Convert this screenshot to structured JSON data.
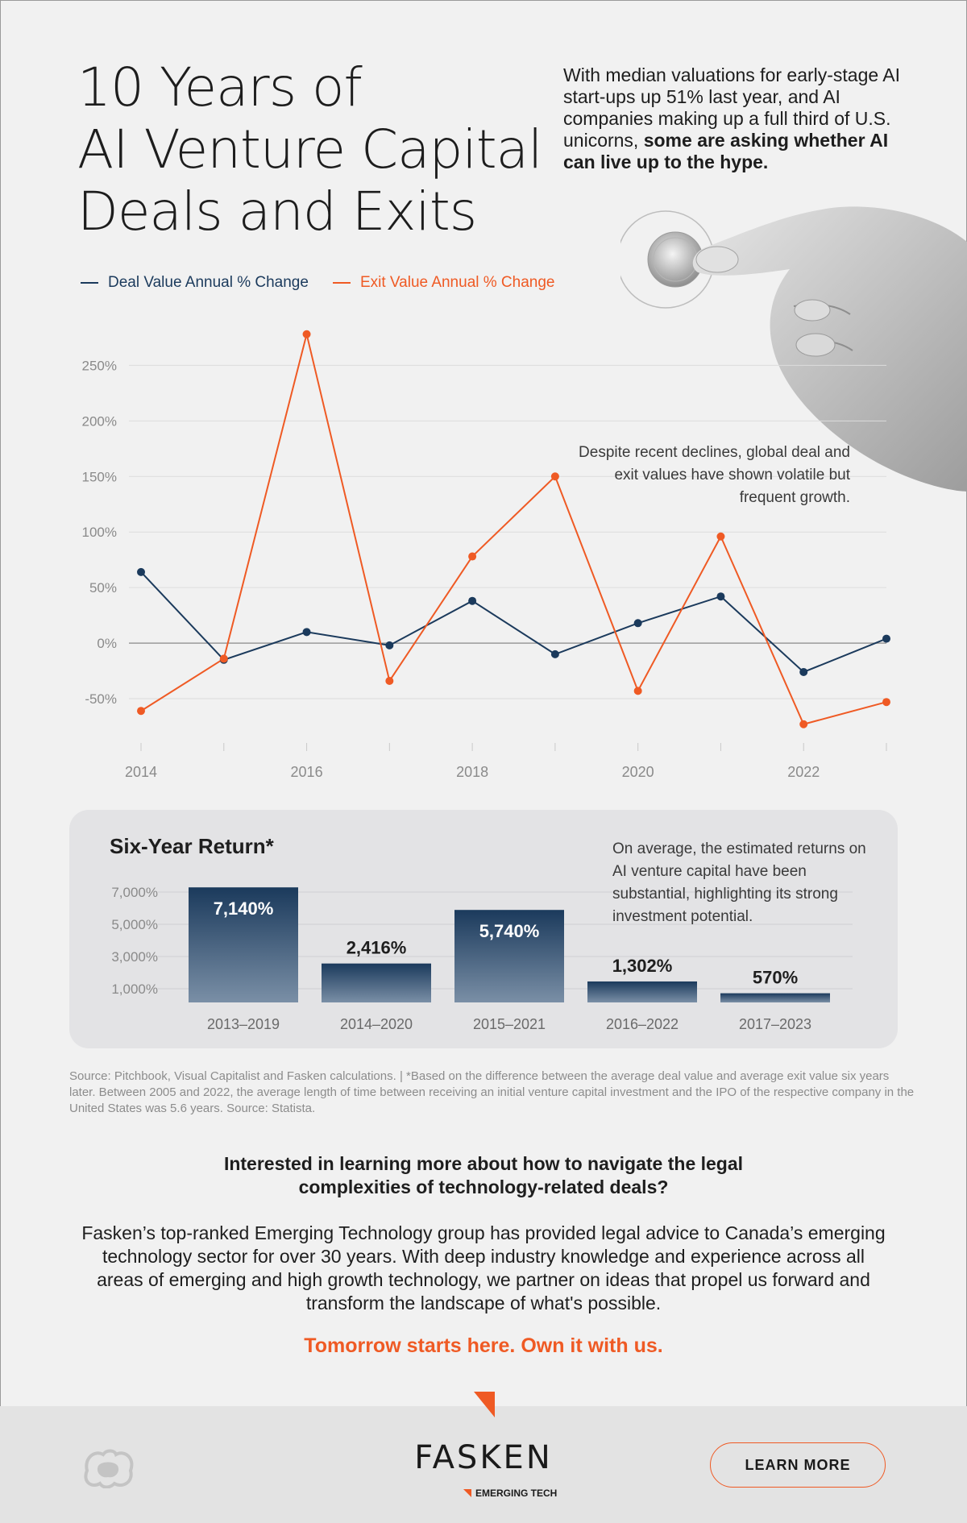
{
  "header": {
    "title_lines": [
      "10 Years of",
      "AI Venture Capital",
      "Deals and Exits"
    ],
    "intro_text": "With median valuations for early-stage AI start-ups up 51% last year, and AI companies making up a full third of U.S. unicorns,",
    "intro_bold": "some are asking whether AI can live up to the hype."
  },
  "colors": {
    "deal": "#1b3a5c",
    "exit": "#ef5a24",
    "accent": "#ef5a24",
    "panel": "#e3e3e5"
  },
  "line_annotation": "Despite recent declines, global deal and exit values have shown volatile but frequent growth.",
  "bar_panel": {
    "title": "Six-Year Return*",
    "note": "On average, the estimated returns on AI venture capital have been substantial, highlighting its strong investment potential."
  },
  "source_note": "Source: Pitchbook, Visual Capitalist and Fasken calculations. | *Based on the difference between the average deal value and average exit value six years later. Between 2005 and 2022, the average length of time between receiving an initial venture capital investment and the IPO of the respective company in the United States was 5.6 years. Source: Statista.",
  "cta": {
    "question_lines": [
      "Interested in learning more about how to navigate the legal",
      "complexities of technology-related deals?"
    ],
    "about": "Fasken’s top-ranked Emerging Technology group has provided legal advice to Canada’s emerging technology sector for over 30 years. With deep industry knowledge and experience across all areas of emerging and high growth technology, we partner on ideas that propel us forward and transform the landscape of what's possible.",
    "tagline": "Tomorrow starts here. Own it with us."
  },
  "footer": {
    "brand": "FASKEN",
    "brand_sub": "EMERGING TECH",
    "button_label": "LEARN MORE"
  },
  "chart_data": [
    {
      "type": "line",
      "x": [
        2014,
        2015,
        2016,
        2017,
        2018,
        2019,
        2020,
        2021,
        2022,
        2023
      ],
      "x_ticks": [
        "2014",
        "2016",
        "2018",
        "2020",
        "2022"
      ],
      "y_ticks": [
        "250%",
        "200%",
        "150%",
        "100%",
        "50%",
        "0%",
        "-50%"
      ],
      "y_tick_values": [
        250,
        200,
        150,
        100,
        50,
        0,
        -50
      ],
      "ylim": [
        -100,
        280
      ],
      "grid": true,
      "legend_position": "top-left",
      "series": [
        {
          "name": "Deal Value Annual % Change",
          "color": "#1b3a5c",
          "values": [
            64,
            -15,
            10,
            -2,
            38,
            -10,
            18,
            42,
            -26,
            4
          ]
        },
        {
          "name": "Exit Value Annual % Change",
          "color": "#ef5a24",
          "values": [
            -61,
            -14,
            278,
            -34,
            78,
            150,
            -43,
            96,
            -73,
            -53
          ]
        }
      ]
    },
    {
      "type": "bar",
      "categories": [
        "2013–2019",
        "2014–2020",
        "2015–2021",
        "2016–2022",
        "2017–2023"
      ],
      "values": [
        7140,
        2416,
        5740,
        1302,
        570
      ],
      "value_labels": [
        "7,140%",
        "2,416%",
        "5,740%",
        "1,302%",
        "570%"
      ],
      "y_ticks": [
        "7,000%",
        "5,000%",
        "3,000%",
        "1,000%"
      ],
      "y_tick_values": [
        7000,
        5000,
        3000,
        1000
      ],
      "ylim": [
        0,
        7200
      ],
      "grid": true
    }
  ]
}
